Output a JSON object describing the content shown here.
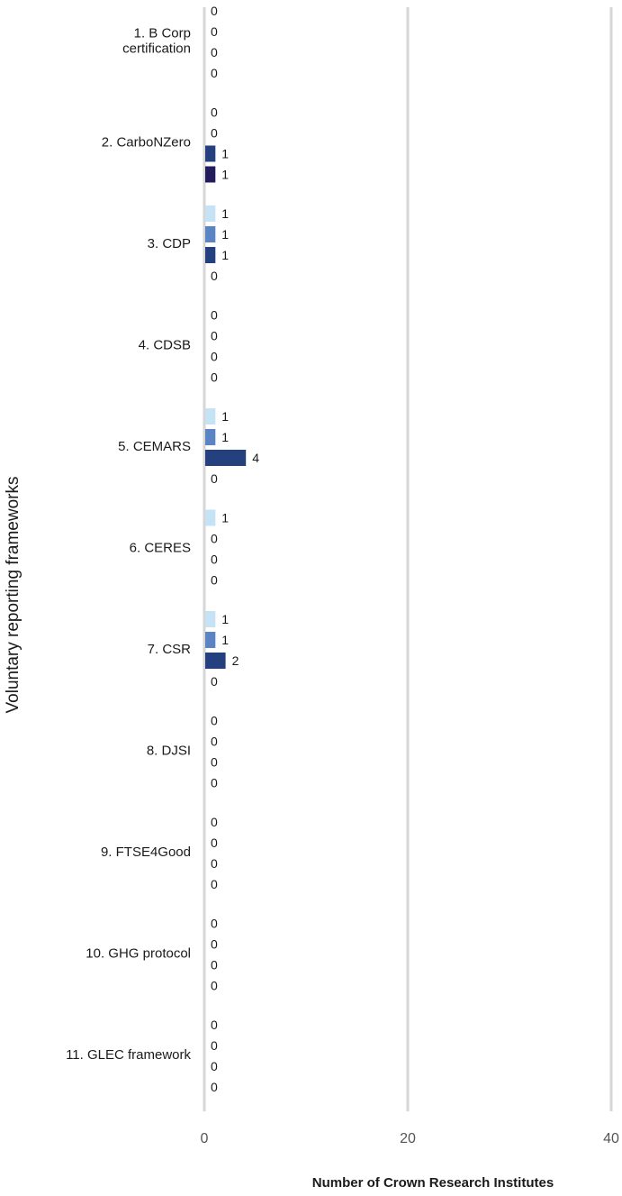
{
  "chart_data": {
    "type": "bar",
    "orientation": "horizontal",
    "xlabel": "Number of Crown Research Institutes",
    "ylabel": "Voluntary reporting frameworks",
    "xlim": [
      0,
      40
    ],
    "xticks": [
      0,
      20,
      40
    ],
    "grid": true,
    "categories": [
      "1. B Corp certification",
      "2. CarboNZero",
      "3. CDP",
      "4. CDSB",
      "5. CEMARS",
      "6. CERES",
      "7. CSR",
      "8. DJSI",
      "9. FTSE4Good",
      "10. GHG protocol",
      "11. GLEC framework"
    ],
    "category_lines": [
      [
        "1. B Corp",
        "certification"
      ],
      [
        "2. CarboNZero"
      ],
      [
        "3. CDP"
      ],
      [
        "4. CDSB"
      ],
      [
        "5. CEMARS"
      ],
      [
        "6. CERES"
      ],
      [
        "7. CSR"
      ],
      [
        "8. DJSI"
      ],
      [
        "9. FTSE4Good"
      ],
      [
        "10. GHG protocol"
      ],
      [
        "11. GLEC framework"
      ]
    ],
    "series": [
      {
        "color": "#c5e3f4",
        "values": [
          0,
          0,
          1,
          0,
          1,
          1,
          1,
          0,
          0,
          0,
          0
        ]
      },
      {
        "color": "#5b84c4",
        "values": [
          0,
          0,
          1,
          0,
          1,
          0,
          1,
          0,
          0,
          0,
          0
        ]
      },
      {
        "color": "#24407f",
        "values": [
          0,
          1,
          1,
          0,
          4,
          0,
          2,
          0,
          0,
          0,
          0
        ]
      },
      {
        "color": "#231c5c",
        "values": [
          0,
          1,
          0,
          0,
          0,
          0,
          0,
          0,
          0,
          0,
          0
        ]
      }
    ]
  }
}
